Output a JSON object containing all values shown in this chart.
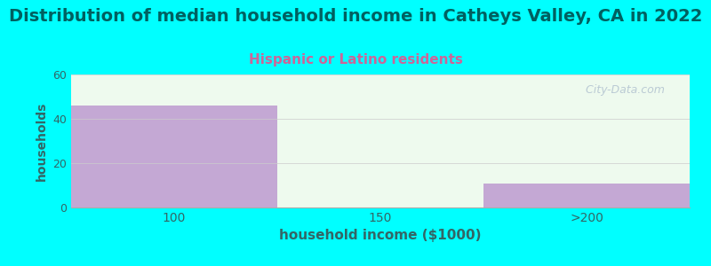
{
  "title": "Distribution of median household income in Catheys Valley, CA in 2022",
  "subtitle": "Hispanic or Latino residents",
  "xlabel": "household income ($1000)",
  "ylabel": "households",
  "background_color": "#00FFFF",
  "bar_color": "#C4A8D4",
  "bar_bg_top": "#F0FAF0",
  "bar_bg_bottom": "#E8F5EE",
  "categories": [
    "100",
    "150",
    ">200"
  ],
  "values": [
    46,
    0,
    11
  ],
  "ylim": [
    0,
    60
  ],
  "yticks": [
    0,
    20,
    40,
    60
  ],
  "watermark": "  City-Data.com",
  "title_fontsize": 14,
  "subtitle_fontsize": 11,
  "subtitle_color": "#CC6699",
  "title_color": "#006060",
  "axis_label_color": "#336666",
  "tick_color": "#336666",
  "xlabel_fontsize": 11,
  "ylabel_fontsize": 10
}
